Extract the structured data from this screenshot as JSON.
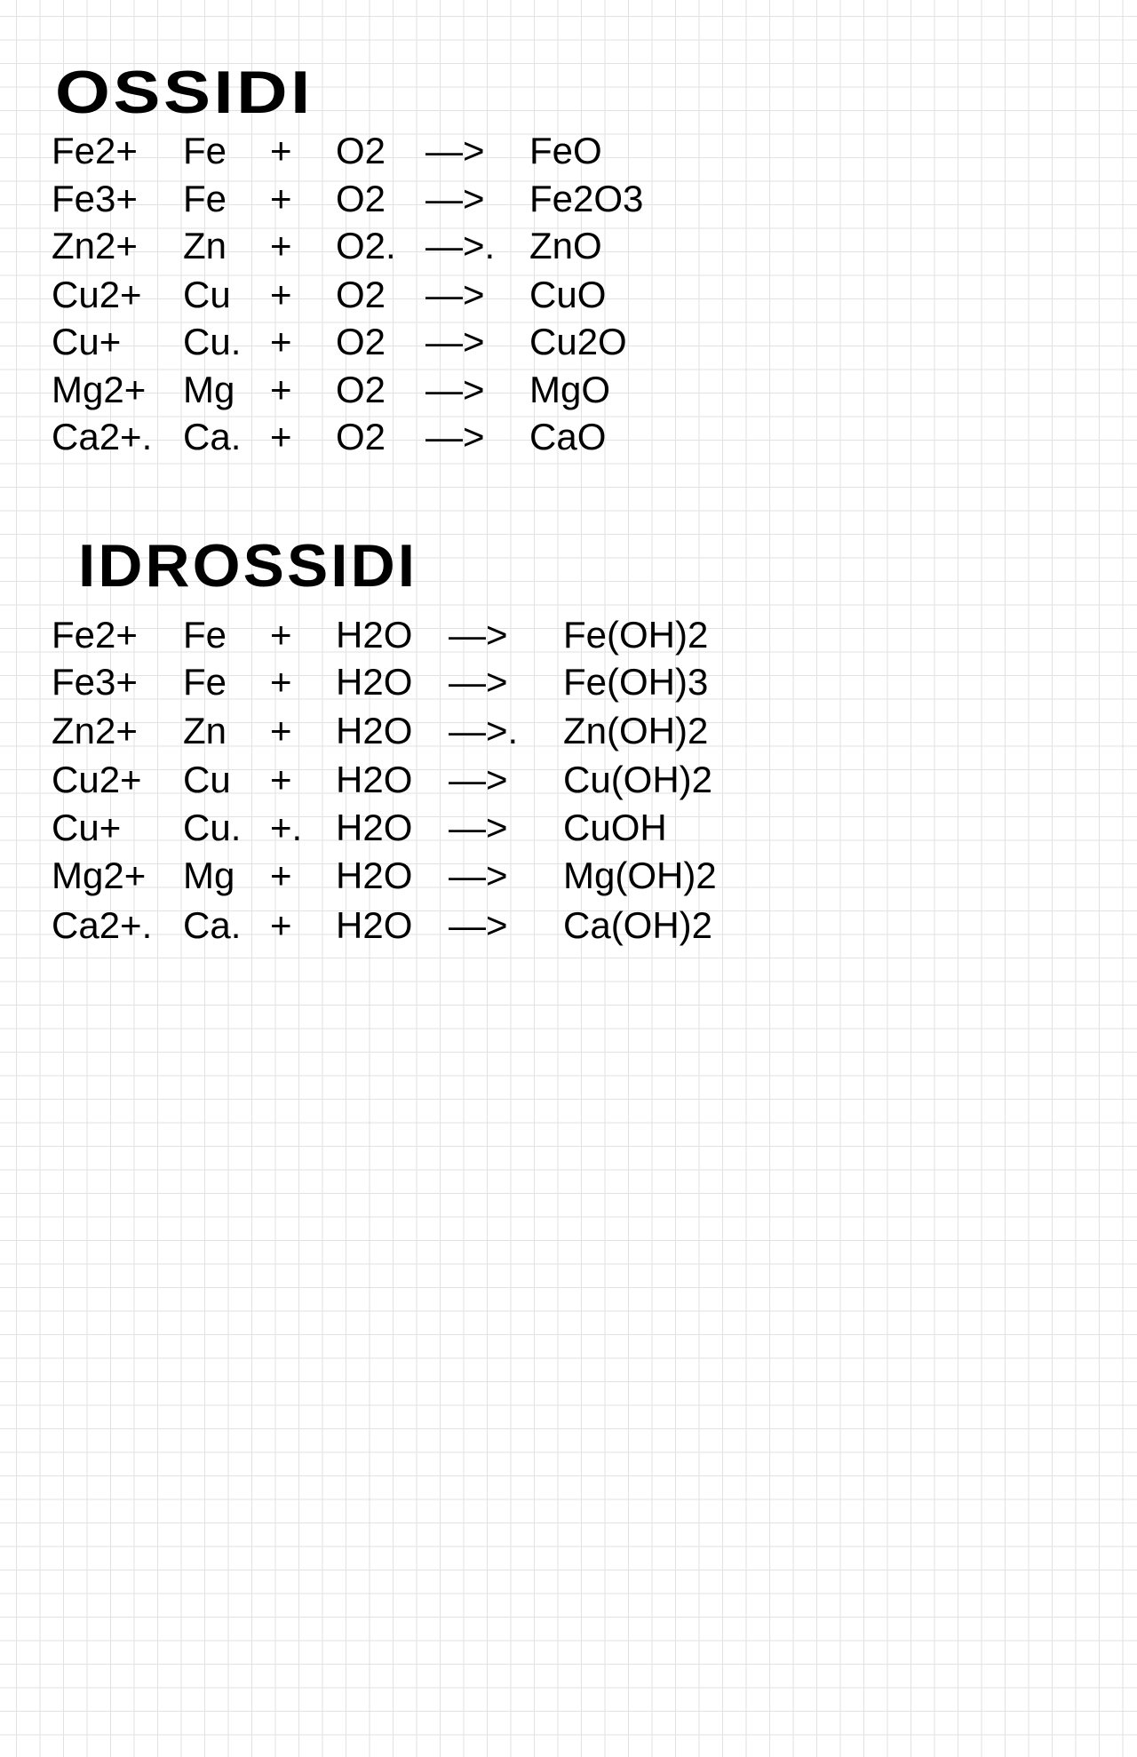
{
  "ossidi": {
    "title": "OSSIDI",
    "rows": [
      [
        "Fe2+",
        "Fe",
        "+",
        "O2",
        "—>",
        "FeO"
      ],
      [
        "Fe3+",
        "Fe",
        "+",
        "O2",
        "—>",
        "Fe2O3"
      ],
      [
        "Zn2+",
        "Zn",
        "+",
        "O2.",
        "—>.",
        "ZnO"
      ],
      [
        "Cu2+",
        "Cu",
        "+",
        "O2",
        "—>",
        "CuO"
      ],
      [
        "Cu+",
        "Cu.",
        "+",
        "O2",
        "—>",
        "Cu2O"
      ],
      [
        "Mg2+",
        "Mg",
        "+",
        "O2",
        "—>",
        "MgO"
      ],
      [
        "Ca2+.",
        "Ca.",
        "+",
        "O2",
        "—>",
        "CaO"
      ]
    ]
  },
  "idrossidi": {
    "title": "IDROSSIDI",
    "rows": [
      [
        "Fe2+",
        "Fe",
        "+",
        "H2O",
        "—>",
        "Fe(OH)2"
      ],
      [
        "Fe3+",
        "Fe",
        "+",
        "H2O",
        "—>",
        "Fe(OH)3"
      ],
      [
        "Zn2+",
        "Zn",
        "+",
        "H2O",
        "—>.",
        "Zn(OH)2"
      ],
      [
        "Cu2+",
        "Cu",
        "+",
        "H2O",
        "—>",
        "Cu(OH)2"
      ],
      [
        "Cu+",
        "Cu.",
        "+.",
        "H2O",
        "—>",
        "CuOH"
      ],
      [
        "Mg2+",
        "Mg",
        "+",
        "H2O",
        "—>",
        "Mg(OH)2"
      ],
      [
        "Ca2+.",
        "Ca.",
        "+",
        "H2O",
        "—>",
        "Ca(OH)2"
      ]
    ]
  }
}
